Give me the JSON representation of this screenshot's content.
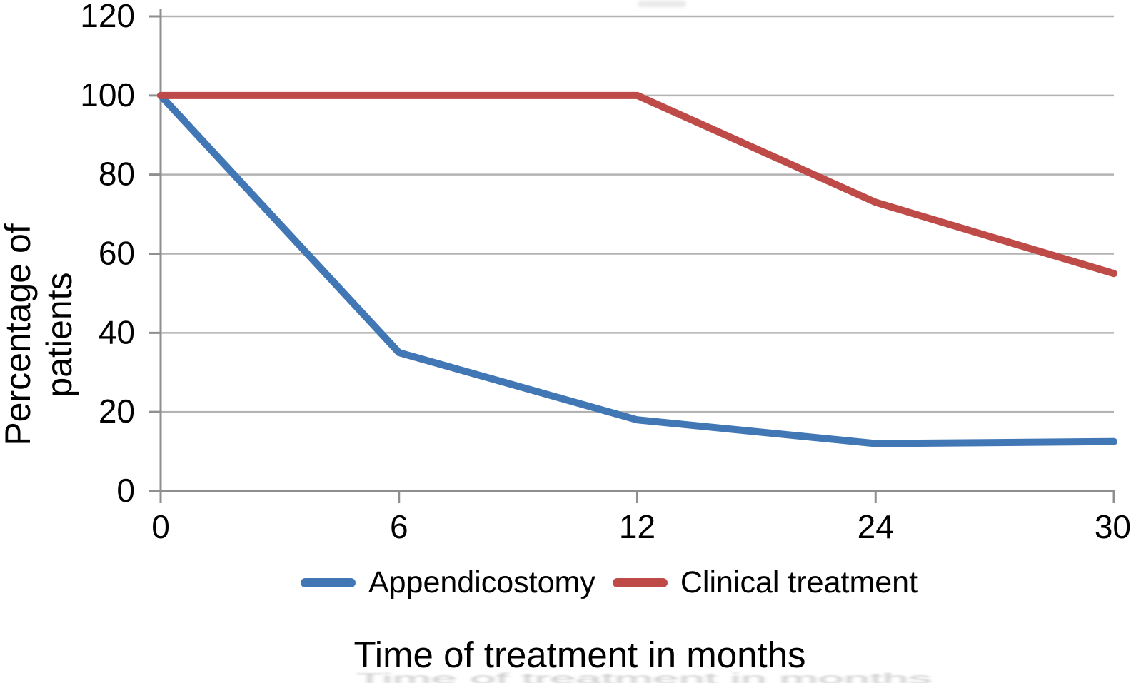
{
  "figure": {
    "background": "#ffffff",
    "text_color": "#000000"
  },
  "chart_data": {
    "type": "line",
    "title": "",
    "xlabel": "Time of treatment in months",
    "ylabel": "Percentage of patients",
    "x": [
      0,
      6,
      12,
      24,
      30
    ],
    "x_axis_type": "categorical-even-spacing",
    "x_tick_labels": [
      "0",
      "6",
      "12",
      "24",
      "30"
    ],
    "yticks": [
      0,
      20,
      40,
      60,
      80,
      100,
      120
    ],
    "ylim": [
      0,
      120
    ],
    "grid": true,
    "legend_position": "bottom",
    "series": [
      {
        "name": "Appendicostomy",
        "color": "#4277B5",
        "values": [
          100,
          35,
          18,
          12,
          12.5
        ]
      },
      {
        "name": "Clinical treatment",
        "color": "#BE4B48",
        "values": [
          100,
          100,
          100,
          73,
          55
        ]
      }
    ],
    "axis_color": "#8f8f8f",
    "grid_color": "#b2b2b2"
  },
  "artifacts": {
    "ghost_text": "Time of treatment in months"
  }
}
